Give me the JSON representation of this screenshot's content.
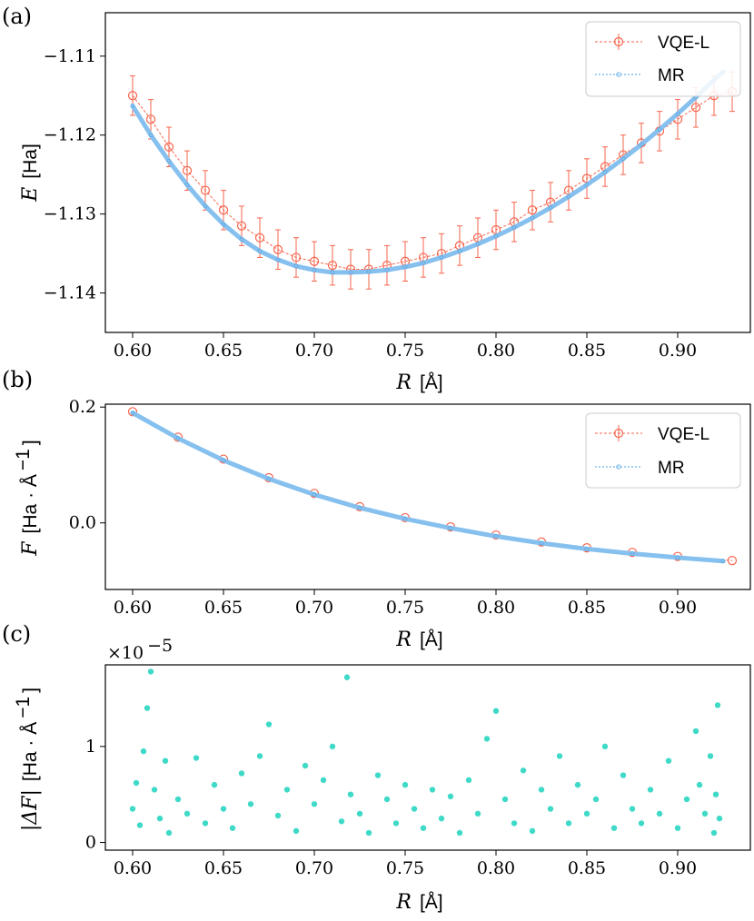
{
  "chart_data": [
    {
      "panel": "(a)",
      "type": "line",
      "xlabel_var": "R",
      "xlabel_unit": "[Å]",
      "ylabel_var": "E",
      "ylabel_unit": "[Ha]",
      "xlim": [
        0.585,
        0.94
      ],
      "ylim": [
        -1.145,
        -1.1045
      ],
      "xticks": [
        0.6,
        0.65,
        0.7,
        0.75,
        0.8,
        0.85,
        0.9
      ],
      "xtick_labels": [
        "0.60",
        "0.65",
        "0.70",
        "0.75",
        "0.80",
        "0.85",
        "0.90"
      ],
      "yticks": [
        -1.11,
        -1.12,
        -1.13,
        -1.14
      ],
      "ytick_labels": [
        "−1.11",
        "−1.12",
        "−1.13",
        "−1.14"
      ],
      "legend_position": "top-right",
      "series": [
        {
          "name": "VQE-L",
          "color": "#f7654d",
          "style": "open circles with error bars, dashed line",
          "x": [
            0.6,
            0.61,
            0.62,
            0.63,
            0.64,
            0.65,
            0.66,
            0.67,
            0.68,
            0.69,
            0.7,
            0.71,
            0.72,
            0.73,
            0.74,
            0.75,
            0.76,
            0.77,
            0.78,
            0.79,
            0.8,
            0.81,
            0.82,
            0.83,
            0.84,
            0.85,
            0.86,
            0.87,
            0.88,
            0.89,
            0.9,
            0.91,
            0.92,
            0.93
          ],
          "y": [
            -1.115,
            -1.118,
            -1.1215,
            -1.1245,
            -1.127,
            -1.1295,
            -1.1315,
            -1.133,
            -1.1345,
            -1.1355,
            -1.136,
            -1.1365,
            -1.137,
            -1.137,
            -1.1365,
            -1.136,
            -1.1355,
            -1.135,
            -1.134,
            -1.133,
            -1.132,
            -1.131,
            -1.1295,
            -1.1285,
            -1.127,
            -1.1255,
            -1.124,
            -1.1225,
            -1.121,
            -1.1195,
            -1.118,
            -1.1165,
            -1.115,
            -1.1145
          ],
          "error": 0.0025
        },
        {
          "name": "MR",
          "color": "#86c0ee",
          "style": "small markers, dotted line",
          "x": [
            0.6,
            0.61,
            0.62,
            0.63,
            0.64,
            0.65,
            0.66,
            0.67,
            0.68,
            0.69,
            0.7,
            0.71,
            0.72,
            0.73,
            0.74,
            0.75,
            0.76,
            0.77,
            0.78,
            0.79,
            0.8,
            0.81,
            0.82,
            0.83,
            0.84,
            0.85,
            0.86,
            0.87,
            0.88,
            0.89,
            0.9,
            0.91,
            0.92,
            0.925
          ],
          "y": [
            -1.1163,
            -1.12,
            -1.1233,
            -1.1263,
            -1.129,
            -1.1313,
            -1.1332,
            -1.1347,
            -1.1358,
            -1.1366,
            -1.1371,
            -1.1374,
            -1.1374,
            -1.1373,
            -1.1371,
            -1.1367,
            -1.1362,
            -1.1355,
            -1.1347,
            -1.1338,
            -1.1328,
            -1.1317,
            -1.1305,
            -1.1292,
            -1.1278,
            -1.1263,
            -1.1247,
            -1.123,
            -1.1212,
            -1.1193,
            -1.1173,
            -1.1152,
            -1.113,
            -1.112
          ]
        }
      ]
    },
    {
      "panel": "(b)",
      "type": "line",
      "xlabel_var": "R",
      "xlabel_unit": "[Å]",
      "ylabel_var": "F",
      "ylabel_unit": "[Ha · Å",
      "ylabel_sup": "−1",
      "ylabel_close": "]",
      "xlim": [
        0.585,
        0.94
      ],
      "ylim": [
        -0.115,
        0.205
      ],
      "xticks": [
        0.6,
        0.65,
        0.7,
        0.75,
        0.8,
        0.85,
        0.9
      ],
      "xtick_labels": [
        "0.60",
        "0.65",
        "0.70",
        "0.75",
        "0.80",
        "0.85",
        "0.90"
      ],
      "yticks": [
        0.2,
        0.0
      ],
      "ytick_labels": [
        "0.2",
        "0.0"
      ],
      "legend_position": "top-right",
      "series": [
        {
          "name": "VQE-L",
          "color": "#f7654d",
          "style": "open circles with error bars, dashed line",
          "x": [
            0.6,
            0.625,
            0.65,
            0.675,
            0.7,
            0.725,
            0.75,
            0.775,
            0.8,
            0.825,
            0.85,
            0.875,
            0.9,
            0.93
          ],
          "y": [
            0.192,
            0.148,
            0.11,
            0.078,
            0.051,
            0.028,
            0.009,
            -0.007,
            -0.021,
            -0.033,
            -0.043,
            -0.051,
            -0.058,
            -0.065
          ]
        },
        {
          "name": "MR",
          "color": "#86c0ee",
          "style": "small markers, dotted line",
          "x": [
            0.6,
            0.625,
            0.65,
            0.675,
            0.7,
            0.725,
            0.75,
            0.775,
            0.8,
            0.825,
            0.85,
            0.875,
            0.9,
            0.925
          ],
          "y": [
            0.19,
            0.146,
            0.108,
            0.076,
            0.049,
            0.026,
            0.007,
            -0.009,
            -0.023,
            -0.035,
            -0.045,
            -0.053,
            -0.06,
            -0.066
          ]
        }
      ]
    },
    {
      "panel": "(c)",
      "type": "scatter",
      "xlabel_var": "R",
      "xlabel_unit": "[Å]",
      "ylabel_var": "|ΔF|",
      "ylabel_unit": "[Ha · Å",
      "ylabel_sup": "−1",
      "ylabel_close": "]",
      "scale_label": "×10",
      "scale_exp": "−5",
      "xlim": [
        0.585,
        0.94
      ],
      "ylim": [
        -0.08,
        1.85
      ],
      "xticks": [
        0.6,
        0.65,
        0.7,
        0.75,
        0.8,
        0.85,
        0.9
      ],
      "xtick_labels": [
        "0.60",
        "0.65",
        "0.70",
        "0.75",
        "0.80",
        "0.85",
        "0.90"
      ],
      "yticks": [
        1,
        0
      ],
      "ytick_labels": [
        "1",
        "0"
      ],
      "series": [
        {
          "name": "|ΔF|",
          "color": "#3fd9c8",
          "x": [
            0.6,
            0.602,
            0.604,
            0.606,
            0.608,
            0.61,
            0.612,
            0.615,
            0.618,
            0.62,
            0.625,
            0.63,
            0.635,
            0.64,
            0.645,
            0.65,
            0.655,
            0.66,
            0.665,
            0.67,
            0.675,
            0.68,
            0.685,
            0.69,
            0.695,
            0.7,
            0.705,
            0.71,
            0.715,
            0.718,
            0.72,
            0.725,
            0.73,
            0.735,
            0.74,
            0.745,
            0.75,
            0.755,
            0.76,
            0.765,
            0.77,
            0.775,
            0.78,
            0.785,
            0.79,
            0.795,
            0.8,
            0.805,
            0.81,
            0.815,
            0.82,
            0.825,
            0.83,
            0.835,
            0.84,
            0.845,
            0.85,
            0.855,
            0.86,
            0.865,
            0.87,
            0.875,
            0.88,
            0.885,
            0.89,
            0.895,
            0.9,
            0.905,
            0.91,
            0.912,
            0.915,
            0.918,
            0.92,
            0.921,
            0.922,
            0.923
          ],
          "y": [
            0.35,
            0.62,
            0.18,
            0.95,
            1.4,
            1.78,
            0.55,
            0.25,
            0.85,
            0.1,
            0.45,
            0.3,
            0.88,
            0.2,
            0.6,
            0.35,
            0.15,
            0.72,
            0.4,
            0.9,
            1.23,
            0.28,
            0.55,
            0.12,
            0.8,
            0.4,
            0.65,
            1.0,
            0.22,
            1.72,
            0.5,
            0.3,
            0.1,
            0.7,
            0.45,
            0.2,
            0.6,
            0.35,
            0.15,
            0.55,
            0.25,
            0.48,
            0.1,
            0.65,
            0.3,
            1.08,
            1.37,
            0.45,
            0.2,
            0.75,
            0.12,
            0.55,
            0.35,
            0.9,
            0.2,
            0.6,
            0.3,
            0.45,
            1.0,
            0.15,
            0.7,
            0.35,
            0.2,
            0.55,
            0.3,
            0.85,
            0.15,
            0.45,
            1.16,
            0.6,
            0.3,
            0.9,
            0.1,
            0.5,
            1.43,
            0.25
          ]
        }
      ]
    }
  ]
}
